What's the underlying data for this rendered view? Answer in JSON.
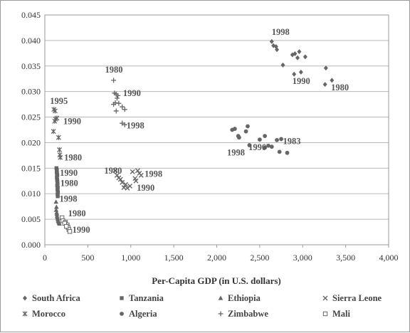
{
  "chart_data": {
    "type": "scatter",
    "xlabel": "Per-Capita GDP (in U.S. dollars)",
    "ylabel": "",
    "xlim": [
      0,
      4000
    ],
    "ylim": [
      0,
      0.045
    ],
    "x_ticks": [
      0,
      500,
      1000,
      1500,
      2000,
      2500,
      3000,
      3500,
      4000
    ],
    "x_tick_labels": [
      "0",
      "500",
      "1,000",
      "1,500",
      "2,000",
      "2,500",
      "3,000",
      "3,500",
      "4,000"
    ],
    "y_ticks": [
      0,
      0.005,
      0.01,
      0.015,
      0.02,
      0.025,
      0.03,
      0.035,
      0.04,
      0.045
    ],
    "y_tick_labels": [
      "0.000",
      "0.005",
      "0.010",
      "0.015",
      "0.020",
      "0.025",
      "0.030",
      "0.035",
      "0.040",
      "0.045"
    ],
    "grid": "horizontal",
    "legend_position": "bottom",
    "series": [
      {
        "name": "South Africa",
        "marker": "diamond",
        "points": [
          [
            2640,
            0.0398
          ],
          [
            2660,
            0.039
          ],
          [
            2690,
            0.0388
          ],
          [
            2700,
            0.0382
          ],
          [
            2770,
            0.0352
          ],
          [
            2880,
            0.0372
          ],
          [
            2910,
            0.0374
          ],
          [
            2940,
            0.0366
          ],
          [
            2960,
            0.0378
          ],
          [
            2900,
            0.0334
          ],
          [
            2980,
            0.0338
          ],
          [
            3030,
            0.0368
          ],
          [
            3270,
            0.0346
          ],
          [
            3340,
            0.0322
          ],
          [
            3260,
            0.0314
          ]
        ]
      },
      {
        "name": "Tanzania",
        "marker": "square",
        "points": [
          [
            135,
            0.015
          ],
          [
            140,
            0.0146
          ],
          [
            138,
            0.0142
          ],
          [
            142,
            0.0139
          ],
          [
            145,
            0.0136
          ],
          [
            140,
            0.0132
          ],
          [
            143,
            0.0127
          ],
          [
            146,
            0.0124
          ],
          [
            148,
            0.012
          ],
          [
            144,
            0.0116
          ],
          [
            150,
            0.0112
          ],
          [
            147,
            0.0108
          ],
          [
            152,
            0.0103
          ],
          [
            148,
            0.0099
          ],
          [
            150,
            0.0095
          ]
        ]
      },
      {
        "name": "Ethiopia",
        "marker": "triangle",
        "points": [
          [
            130,
            0.0084
          ],
          [
            135,
            0.0074
          ],
          [
            132,
            0.0068
          ],
          [
            138,
            0.0063
          ],
          [
            140,
            0.006
          ],
          [
            142,
            0.0056
          ],
          [
            145,
            0.0053
          ],
          [
            150,
            0.005
          ],
          [
            155,
            0.0047
          ],
          [
            160,
            0.0045
          ],
          [
            165,
            0.0043
          ],
          [
            170,
            0.0041
          ]
        ]
      },
      {
        "name": "Sierra Leone",
        "marker": "x",
        "points": [
          [
            820,
            0.0145
          ],
          [
            840,
            0.0136
          ],
          [
            860,
            0.0131
          ],
          [
            880,
            0.0128
          ],
          [
            900,
            0.0122
          ],
          [
            940,
            0.0118
          ],
          [
            990,
            0.0115
          ],
          [
            1020,
            0.0143
          ],
          [
            1050,
            0.013
          ],
          [
            1060,
            0.0125
          ],
          [
            1080,
            0.0145
          ],
          [
            1100,
            0.014
          ],
          [
            1120,
            0.0136
          ],
          [
            920,
            0.0112
          ],
          [
            960,
            0.0111
          ]
        ]
      },
      {
        "name": "Morocco",
        "marker": "x-star",
        "points": [
          [
            105,
            0.0265
          ],
          [
            120,
            0.0262
          ],
          [
            125,
            0.0246
          ],
          [
            140,
            0.0248
          ],
          [
            115,
            0.0242
          ],
          [
            100,
            0.0222
          ],
          [
            160,
            0.021
          ],
          [
            170,
            0.0186
          ],
          [
            175,
            0.0176
          ],
          [
            180,
            0.0171
          ]
        ]
      },
      {
        "name": "Algeria",
        "marker": "circle",
        "points": [
          [
            2180,
            0.0225
          ],
          [
            2210,
            0.0227
          ],
          [
            2250,
            0.0213
          ],
          [
            2260,
            0.021
          ],
          [
            2340,
            0.0222
          ],
          [
            2360,
            0.0232
          ],
          [
            2380,
            0.0195
          ],
          [
            2500,
            0.0206
          ],
          [
            2560,
            0.0213
          ],
          [
            2600,
            0.0194
          ],
          [
            2640,
            0.0192
          ],
          [
            2700,
            0.0205
          ],
          [
            2750,
            0.0207
          ],
          [
            2730,
            0.0182
          ],
          [
            2820,
            0.018
          ],
          [
            2560,
            0.019
          ]
        ]
      },
      {
        "name": "Zimbabwe",
        "marker": "plus",
        "points": [
          [
            800,
            0.0322
          ],
          [
            810,
            0.0297
          ],
          [
            830,
            0.0295
          ],
          [
            850,
            0.0292
          ],
          [
            800,
            0.0275
          ],
          [
            820,
            0.0278
          ],
          [
            860,
            0.0277
          ],
          [
            900,
            0.027
          ],
          [
            930,
            0.0265
          ],
          [
            830,
            0.0262
          ],
          [
            900,
            0.0238
          ],
          [
            930,
            0.0235
          ],
          [
            840,
            0.0287
          ]
        ]
      },
      {
        "name": "Mali",
        "marker": "open-square",
        "points": [
          [
            200,
            0.0053
          ],
          [
            210,
            0.0047
          ],
          [
            240,
            0.0044
          ],
          [
            260,
            0.0039
          ],
          [
            270,
            0.0034
          ],
          [
            280,
            0.003
          ],
          [
            290,
            0.0026
          ],
          [
            230,
            0.0042
          ],
          [
            250,
            0.0036
          ]
        ]
      }
    ],
    "annotations": [
      {
        "text": "1998",
        "x": 2640,
        "y": 0.0411
      },
      {
        "text": "1990",
        "x": 2880,
        "y": 0.0315
      },
      {
        "text": "1980",
        "x": 3330,
        "y": 0.0302
      },
      {
        "text": "1980",
        "x": 700,
        "y": 0.0337
      },
      {
        "text": "1990",
        "x": 910,
        "y": 0.0291
      },
      {
        "text": "1998",
        "x": 950,
        "y": 0.0228
      },
      {
        "text": "1995",
        "x": 60,
        "y": 0.0276
      },
      {
        "text": "1990",
        "x": 215,
        "y": 0.0236
      },
      {
        "text": "1980",
        "x": 225,
        "y": 0.0165
      },
      {
        "text": "1990",
        "x": 175,
        "y": 0.0135
      },
      {
        "text": "1980",
        "x": 180,
        "y": 0.0115
      },
      {
        "text": "1998",
        "x": 170,
        "y": 0.0084
      },
      {
        "text": "1980",
        "x": 270,
        "y": 0.0056
      },
      {
        "text": "1990",
        "x": 320,
        "y": 0.0024
      },
      {
        "text": "1980",
        "x": 690,
        "y": 0.0139
      },
      {
        "text": "1998",
        "x": 1160,
        "y": 0.0133
      },
      {
        "text": "1990",
        "x": 1070,
        "y": 0.0106
      },
      {
        "text": "1983",
        "x": 2770,
        "y": 0.0197
      },
      {
        "text": "1990",
        "x": 2370,
        "y": 0.0185
      },
      {
        "text": "1998",
        "x": 2120,
        "y": 0.0175
      }
    ]
  }
}
